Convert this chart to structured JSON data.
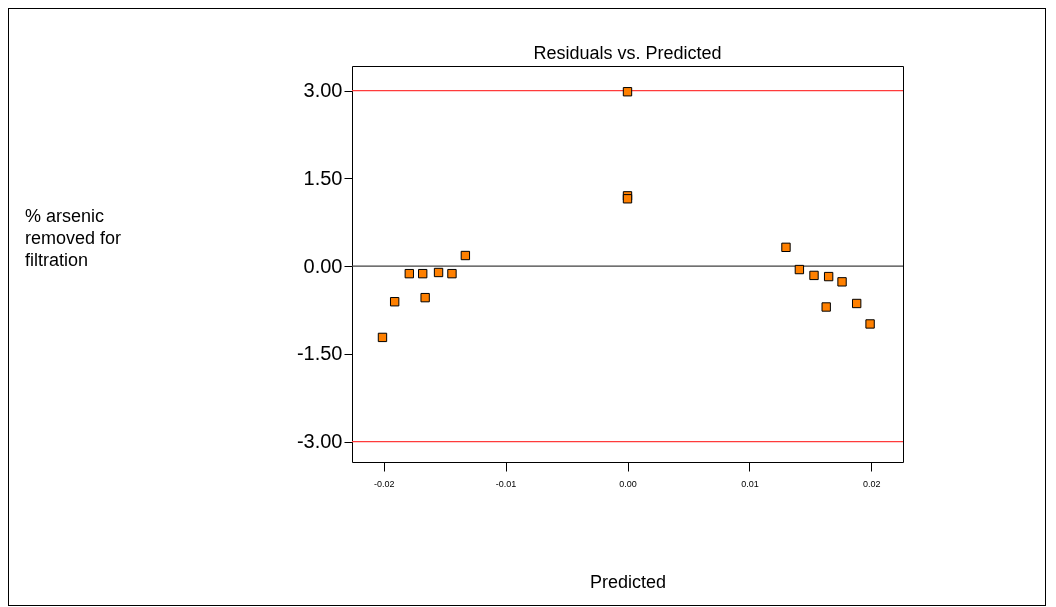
{
  "chart_data": {
    "type": "scatter",
    "title": "Residuals vs. Predicted",
    "xlabel": "Predicted",
    "annotations": [
      "% arsenic removed for filtration"
    ],
    "x": [
      -0.0201,
      -0.0191,
      -0.0179,
      -0.0168,
      -0.0166,
      -0.0155,
      -0.0144,
      -0.0133,
      0.0,
      0.0,
      0.0,
      0.013,
      0.0141,
      0.0153,
      0.0165,
      0.0163,
      0.0176,
      0.0188,
      0.0199
    ],
    "series": [
      {
        "color": "#ff8000",
        "values": [
          -1.22,
          -0.61,
          -0.13,
          -0.13,
          -0.54,
          -0.11,
          -0.13,
          0.18,
          2.98,
          1.2,
          1.15,
          0.32,
          -0.06,
          -0.16,
          -0.18,
          -0.7,
          -0.27,
          -0.64,
          -0.99
        ]
      }
    ],
    "xlim": [
      -0.0226,
      0.0226
    ],
    "ylim": [
      -3.35,
      3.42
    ],
    "xticks": [
      {
        "value": -0.02,
        "label": "-0.02"
      },
      {
        "value": -0.01,
        "label": "-0.01"
      },
      {
        "value": 0,
        "label": "0.00"
      },
      {
        "value": 0.01,
        "label": "0.01"
      },
      {
        "value": 0.02,
        "label": "0.02"
      }
    ],
    "yticks": [
      {
        "value": -3,
        "label": "-3.00"
      },
      {
        "value": -1.5,
        "label": "-1.50"
      },
      {
        "value": 0,
        "label": "0.00"
      },
      {
        "value": 1.5,
        "label": "1.50"
      },
      {
        "value": 3,
        "label": "3.00"
      }
    ],
    "ref_lines": [
      {
        "axis": "y",
        "value": 3,
        "color": "#ff3b3b"
      },
      {
        "axis": "y",
        "value": 0,
        "color": "#404040"
      },
      {
        "axis": "y",
        "value": -3,
        "color": "#ff3b3b"
      }
    ],
    "marker": "square",
    "grid": false
  }
}
